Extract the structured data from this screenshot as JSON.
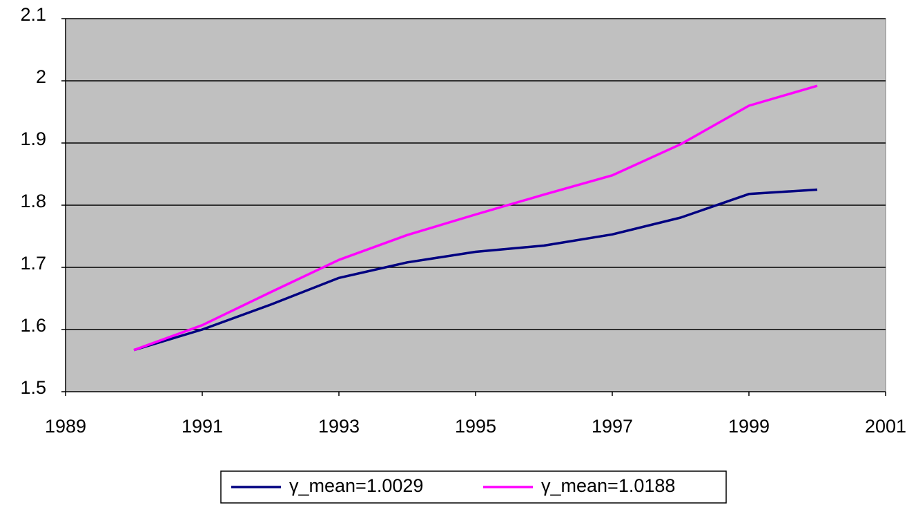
{
  "chart_data": {
    "type": "line",
    "x": [
      1990,
      1991,
      1992,
      1993,
      1994,
      1995,
      1996,
      1997,
      1998,
      1999,
      2000
    ],
    "series": [
      {
        "name": "γ_mean=1.0029",
        "color": "#000080",
        "values": [
          1.567,
          1.6,
          1.64,
          1.683,
          1.708,
          1.725,
          1.735,
          1.753,
          1.78,
          1.818,
          1.825
        ]
      },
      {
        "name": "γ_mean=1.0188",
        "color": "#ff00ff",
        "values": [
          1.567,
          1.607,
          1.66,
          1.712,
          1.752,
          1.785,
          1.817,
          1.848,
          1.898,
          1.96,
          1.992
        ]
      }
    ],
    "xlim": [
      1989,
      2001
    ],
    "xticks": [
      1989,
      1991,
      1993,
      1995,
      1997,
      1999,
      2001
    ],
    "ylim": [
      1.5,
      2.1
    ],
    "yticks": [
      1.5,
      1.6,
      1.7,
      1.8,
      1.9,
      2,
      2.1
    ],
    "grid": true,
    "plot_background": "#c0c0c0",
    "legend": "bottom"
  }
}
